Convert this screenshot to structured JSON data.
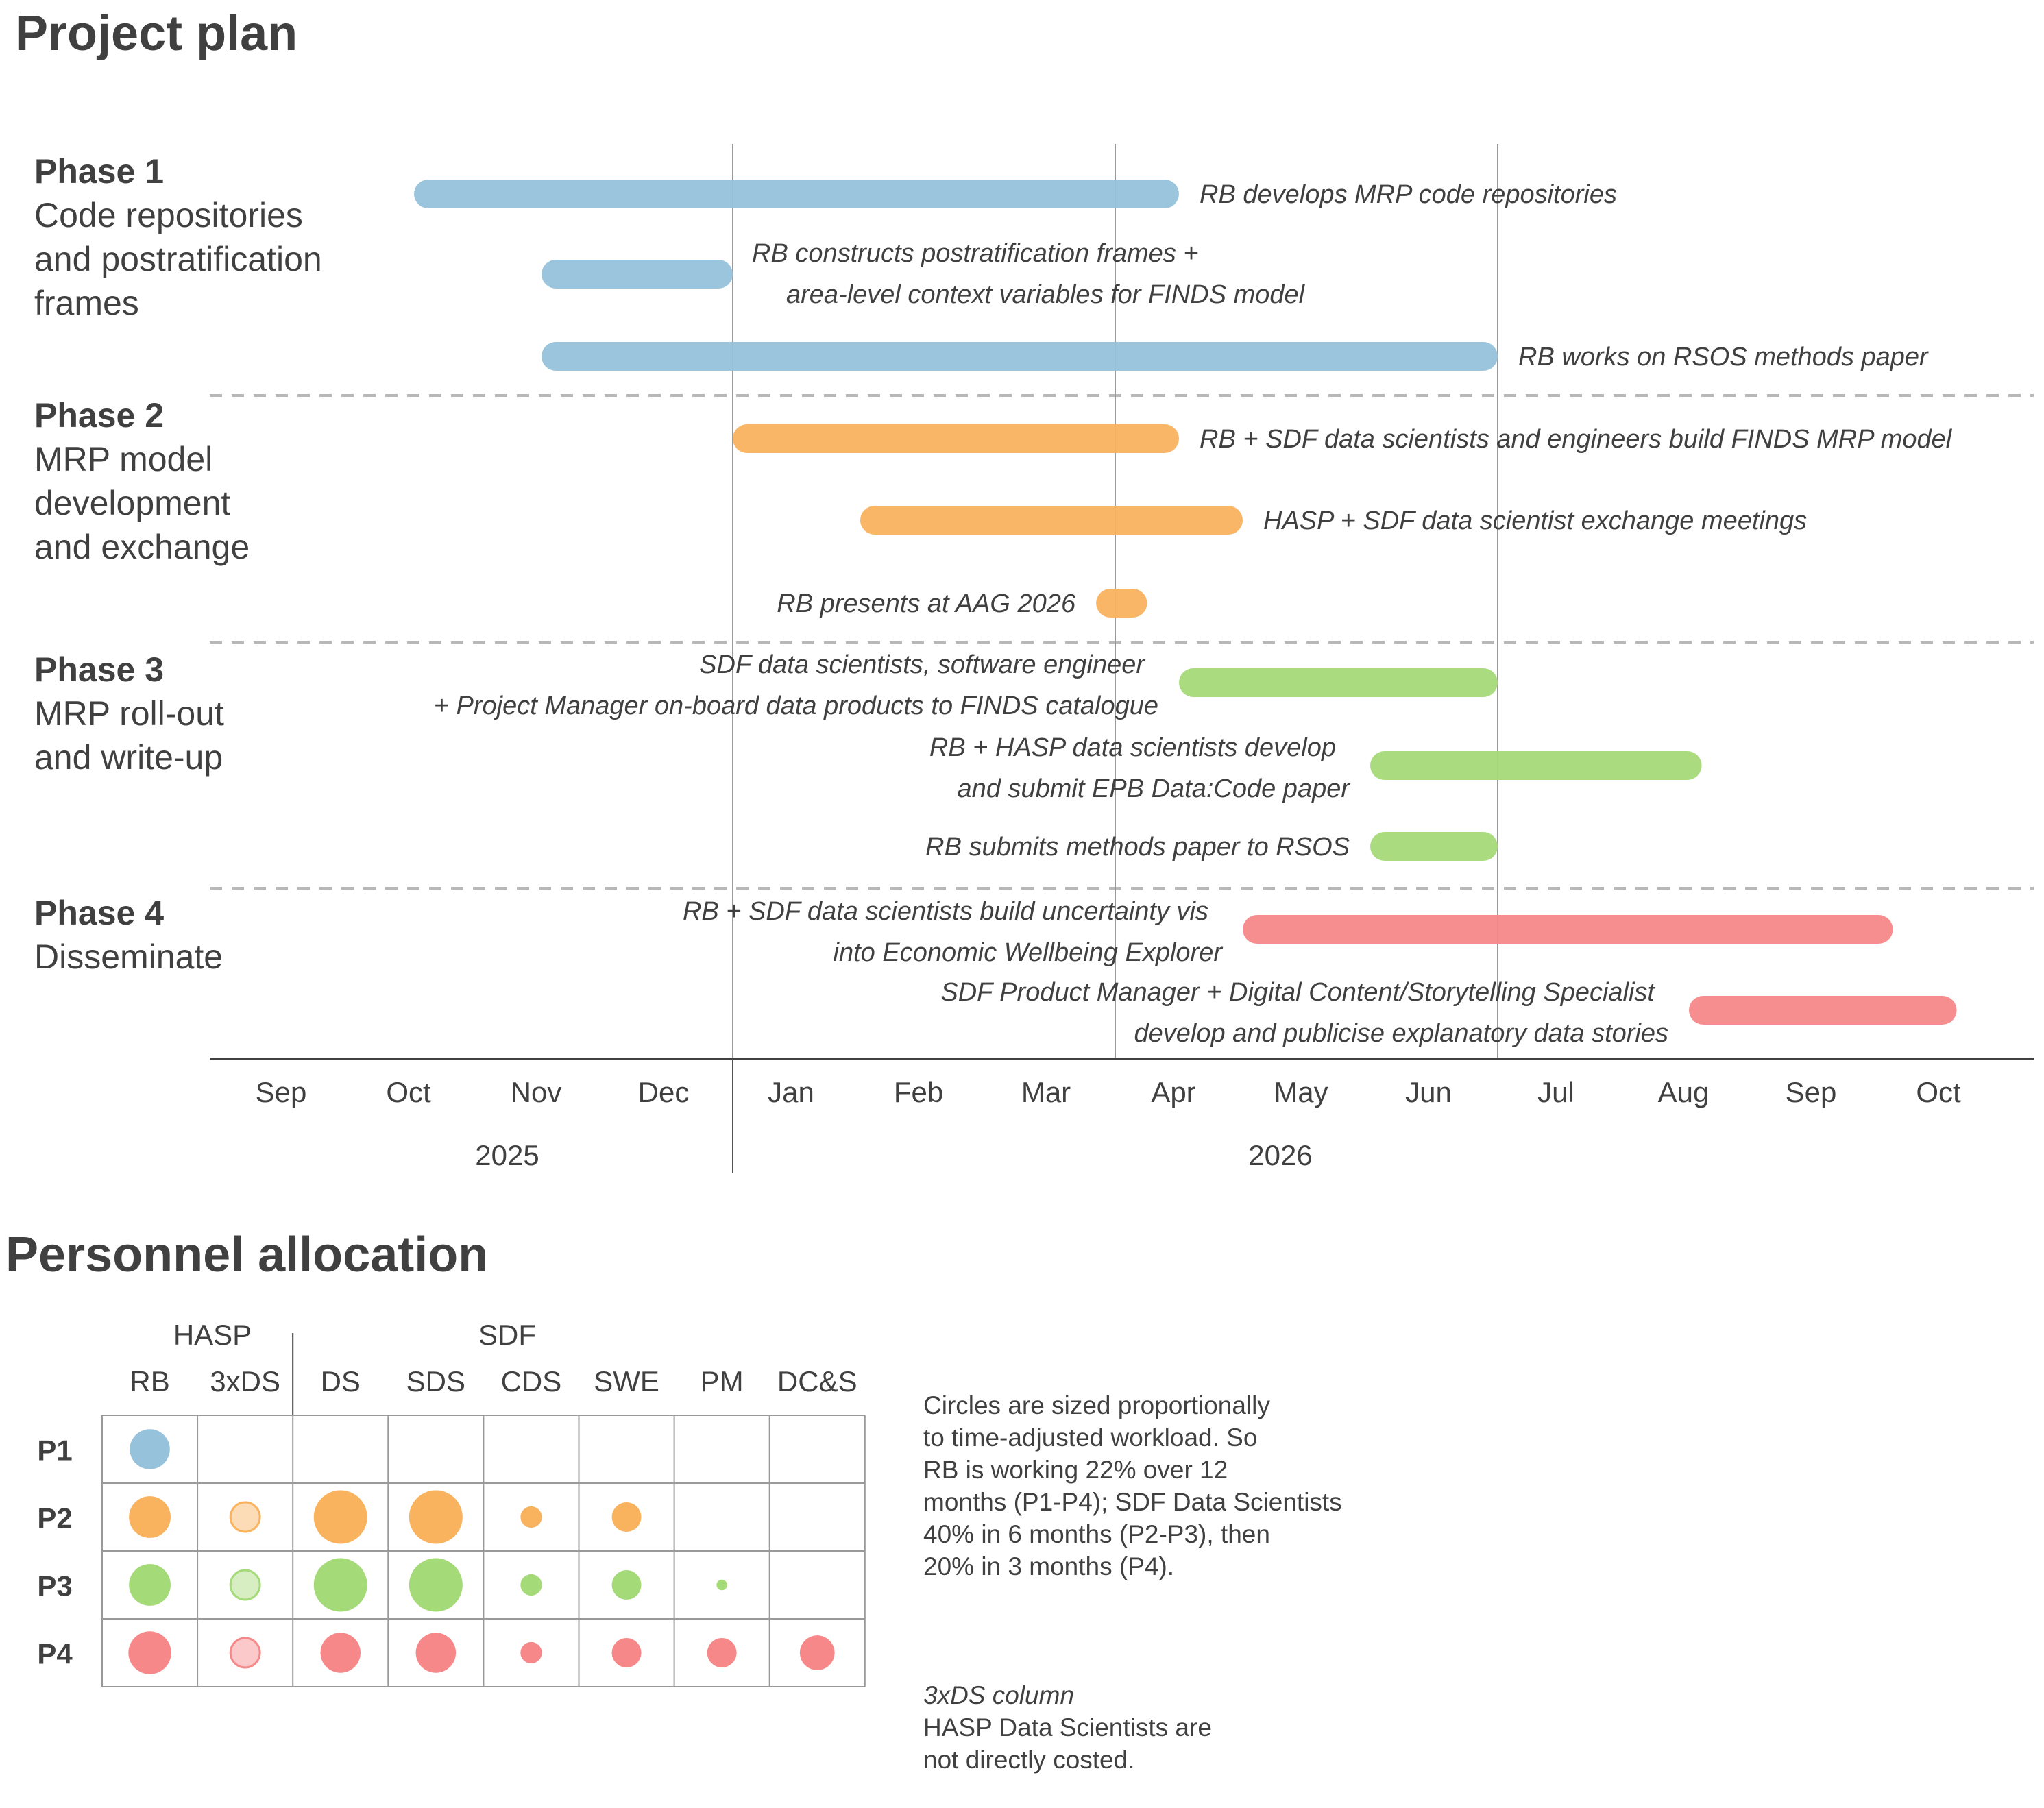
{
  "titles": {
    "project_plan": "Project plan",
    "personnel": "Personnel allocation"
  },
  "phases": [
    {
      "name": "Phase 1",
      "desc": "Code repositories\nand postratification\nframes"
    },
    {
      "name": "Phase 2",
      "desc": "MRP model\ndevelopment\nand exchange"
    },
    {
      "name": "Phase 3",
      "desc": "MRP roll-out\nand write-up"
    },
    {
      "name": "Phase 4",
      "desc": "Disseminate"
    }
  ],
  "colors": {
    "phase1": "#96c2db",
    "phase2": "#f9b25e",
    "phase3": "#a5da78",
    "phase4": "#f68889",
    "text": "#404040",
    "grid": "#b0b0b0",
    "divider": "#b8b8b8"
  },
  "chart_data": [
    {
      "type": "gantt",
      "title": "Project plan",
      "x_unit": "months since 1 Sep 2025",
      "xlim": [
        0,
        14
      ],
      "ticks": [
        "Sep",
        "Oct",
        "Nov",
        "Dec",
        "Jan",
        "Feb",
        "Mar",
        "Apr",
        "May",
        "Jun",
        "Jul",
        "Aug",
        "Sep",
        "Oct"
      ],
      "years": [
        {
          "label": "2025",
          "start": 0,
          "end": 4
        },
        {
          "label": "2026",
          "start": 4,
          "end": 14
        }
      ],
      "reference_lines": [
        4,
        7,
        10
      ],
      "tasks": [
        {
          "phase": 1,
          "start": 1.5,
          "end": 7.5,
          "label": [
            "RB develops MRP code repositories"
          ],
          "label_side": "right"
        },
        {
          "phase": 1,
          "start": 2.5,
          "end": 4.0,
          "label": [
            "RB constructs postratification frames +",
            "area-level context variables for FINDS model"
          ],
          "label_side": "right-stack"
        },
        {
          "phase": 1,
          "start": 2.5,
          "end": 10.0,
          "label": [
            "RB works on RSOS methods paper"
          ],
          "label_side": "right"
        },
        {
          "phase": 2,
          "start": 4.0,
          "end": 7.5,
          "label": [
            "RB + SDF data scientists and engineers build FINDS MRP model"
          ],
          "label_side": "right"
        },
        {
          "phase": 2,
          "start": 5.0,
          "end": 8.0,
          "label": [
            "HASP + SDF data scientist exchange meetings"
          ],
          "label_side": "right"
        },
        {
          "phase": 2,
          "start": 6.85,
          "end": 7.25,
          "label": [
            "RB presents at AAG 2026"
          ],
          "label_side": "left"
        },
        {
          "phase": 3,
          "start": 7.5,
          "end": 10.0,
          "label": [
            "SDF data scientists, software engineer",
            "+ Project Manager on-board data products to FINDS catalogue"
          ],
          "label_side": "left"
        },
        {
          "phase": 3,
          "start": 9.0,
          "end": 11.6,
          "label": [
            "RB + HASP data scientists develop",
            "and submit EPB Data:Code paper"
          ],
          "label_side": "left"
        },
        {
          "phase": 3,
          "start": 9.0,
          "end": 10.0,
          "label": [
            "RB submits methods paper to RSOS"
          ],
          "label_side": "left"
        },
        {
          "phase": 4,
          "start": 8.0,
          "end": 13.1,
          "label": [
            "RB + SDF data scientists build uncertainty vis",
            "into Economic Wellbeing Explorer"
          ],
          "label_side": "left"
        },
        {
          "phase": 4,
          "start": 11.5,
          "end": 13.6,
          "label": [
            "SDF Product Manager + Digital Content/Storytelling Specialist",
            "develop and publicise explanatory data stories"
          ],
          "label_side": "left"
        }
      ]
    },
    {
      "type": "bubble-matrix",
      "title": "Personnel allocation",
      "groups": [
        {
          "label": "HASP",
          "columns": 2
        },
        {
          "label": "SDF",
          "columns": 6
        }
      ],
      "columns": [
        "RB",
        "3xDS",
        "DS",
        "SDS",
        "CDS",
        "SWE",
        "PM",
        "DC&S"
      ],
      "rows": [
        "P1",
        "P2",
        "P3",
        "P4"
      ],
      "relative_size_note": "circle diameter relative to largest (1.0)",
      "values": [
        [
          0.75,
          0,
          0,
          0,
          0,
          0,
          0,
          0
        ],
        [
          0.78,
          0.55,
          1.0,
          1.0,
          0.4,
          0.55,
          0,
          0
        ],
        [
          0.78,
          0.55,
          1.0,
          1.0,
          0.4,
          0.55,
          0.2,
          0
        ],
        [
          0.8,
          0.55,
          0.75,
          0.75,
          0.4,
          0.55,
          0.55,
          0.65
        ]
      ],
      "light_columns": [
        "3xDS"
      ]
    }
  ],
  "notes": {
    "main": "Circles are sized proportionally\nto time-adjusted workload. So\nRB is working 22% over 12\nmonths (P1-P4); SDF Data Scientists\n40% in 6 months (P2-P3), then\n20% in 3 months (P4).",
    "sub_heading": "3xDS column",
    "sub_text": "HASP Data Scientists are\nnot directly costed."
  }
}
